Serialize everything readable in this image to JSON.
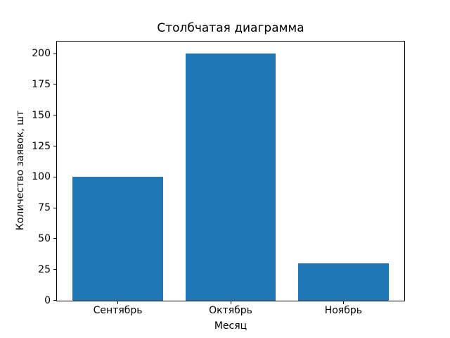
{
  "figure": {
    "background": "#ffffff"
  },
  "chart_data": {
    "type": "bar",
    "title": "Столбчатая диаграмма",
    "xlabel": "Месяц",
    "ylabel": "Количество заявок, шт",
    "categories": [
      "Сентябрь",
      "Октябрь",
      "Ноябрь"
    ],
    "values": [
      100,
      200,
      30
    ],
    "yticks": [
      0,
      25,
      50,
      75,
      100,
      125,
      150,
      175,
      200
    ],
    "ylim": [
      0,
      210
    ],
    "xlim": [
      -0.54,
      2.54
    ],
    "bar_width": 0.8,
    "bar_color": "#1f77b4",
    "axis_color": "#000000",
    "text_color": "#000000",
    "grid": false,
    "legend_position": "none"
  }
}
